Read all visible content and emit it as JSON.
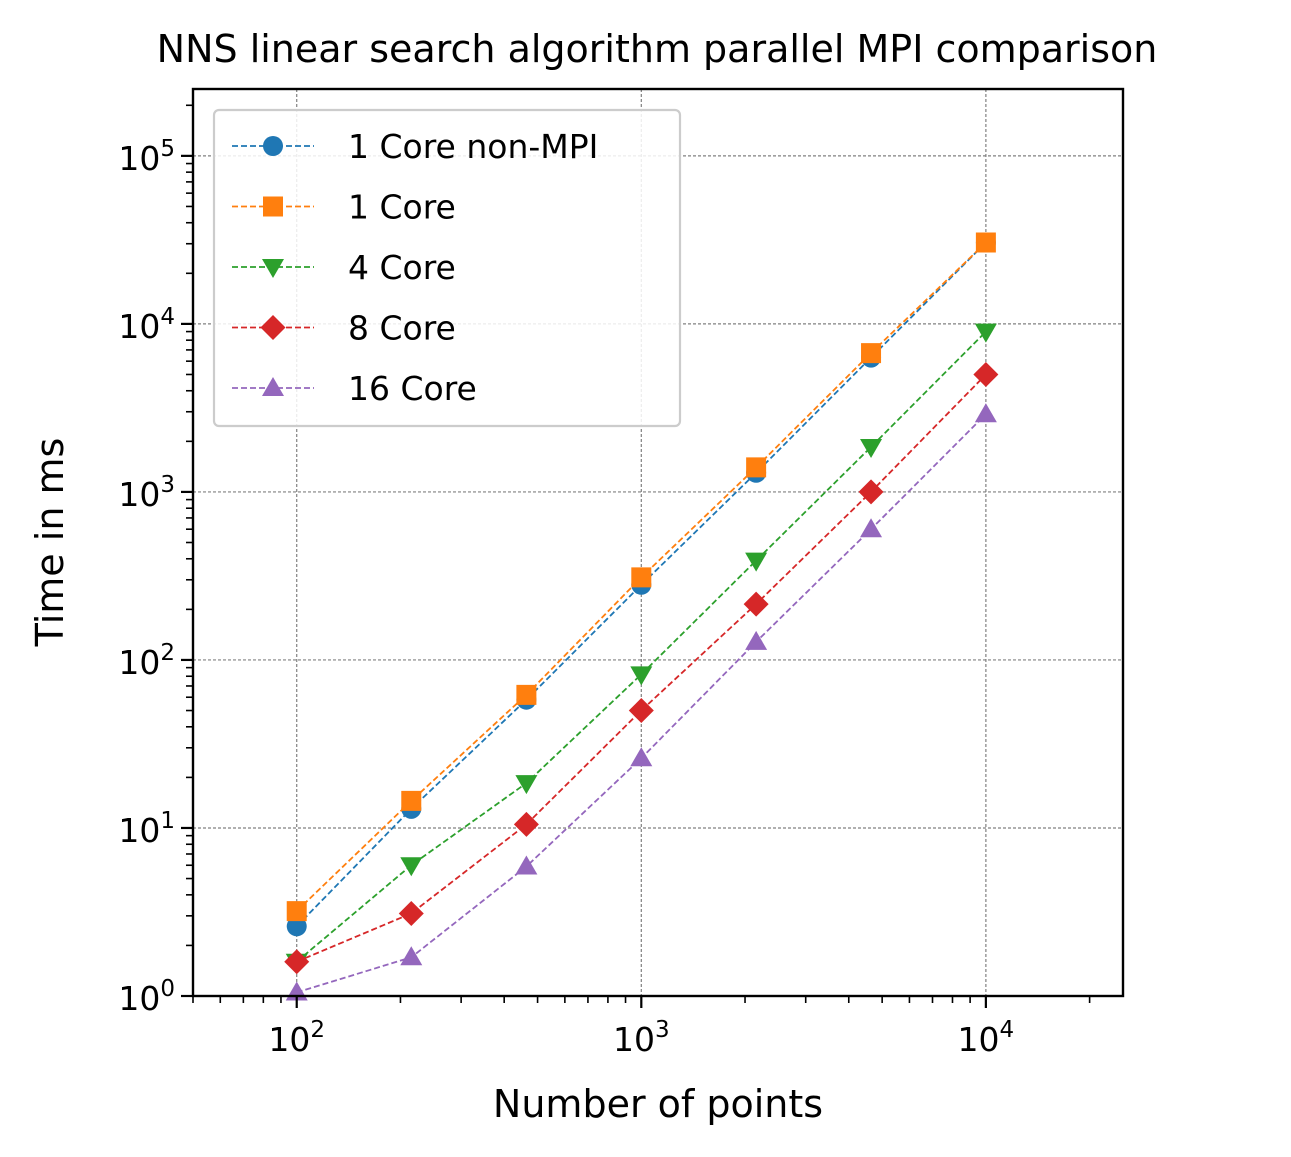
{
  "chart_data": {
    "type": "line",
    "title": "NNS linear search algorithm parallel MPI comparison",
    "xlabel": "Number of points",
    "ylabel": "Time in ms",
    "xscale": "log",
    "yscale": "log",
    "xlim": [
      50,
      25000
    ],
    "ylim": [
      1,
      250000
    ],
    "grid": true,
    "legend_position": "top-left",
    "x": [
      100,
      215,
      464,
      1000,
      2154,
      4642,
      10000
    ],
    "x_ticks": [
      {
        "base": "10",
        "exp": "2",
        "value": 100
      },
      {
        "base": "10",
        "exp": "3",
        "value": 1000
      },
      {
        "base": "10",
        "exp": "4",
        "value": 10000
      }
    ],
    "y_ticks": [
      {
        "base": "10",
        "exp": "0",
        "value": 1
      },
      {
        "base": "10",
        "exp": "1",
        "value": 10
      },
      {
        "base": "10",
        "exp": "2",
        "value": 100
      },
      {
        "base": "10",
        "exp": "3",
        "value": 1000
      },
      {
        "base": "10",
        "exp": "4",
        "value": 10000
      },
      {
        "base": "10",
        "exp": "5",
        "value": 100000
      }
    ],
    "series": [
      {
        "name": "1 Core non-MPI",
        "color": "#1f77b4",
        "marker": "circle",
        "values": [
          2.6,
          13,
          58,
          280,
          1300,
          6300,
          30500
        ]
      },
      {
        "name": "1 Core",
        "color": "#ff7f0e",
        "marker": "square",
        "values": [
          3.2,
          14.5,
          62,
          310,
          1400,
          6700,
          30500
        ]
      },
      {
        "name": "4 Core",
        "color": "#2ca02c",
        "marker": "triangle-down",
        "values": [
          1.6,
          6,
          18.5,
          82,
          390,
          1850,
          9000
        ]
      },
      {
        "name": "8 Core",
        "color": "#d62728",
        "marker": "diamond",
        "values": [
          1.6,
          3.1,
          10.5,
          50,
          215,
          1000,
          5000
        ]
      },
      {
        "name": "16 Core",
        "color": "#9467bd",
        "marker": "triangle-up",
        "values": [
          1.05,
          1.7,
          5.9,
          26,
          128,
          600,
          2900
        ]
      }
    ]
  }
}
